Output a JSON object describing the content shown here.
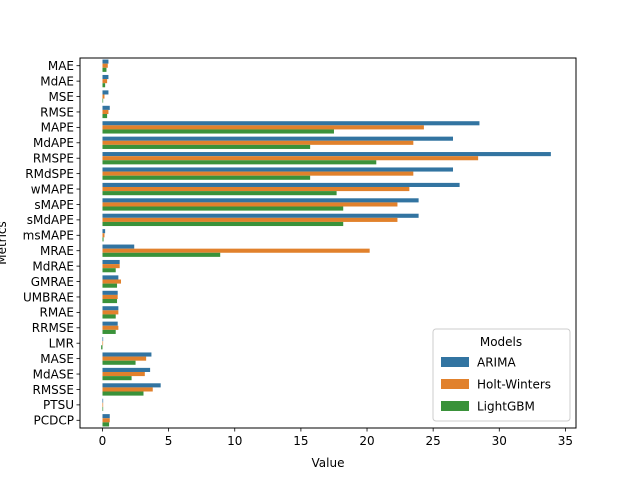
{
  "chart_data": {
    "type": "bar",
    "orientation": "horizontal",
    "title": "",
    "xlabel": "Value",
    "ylabel": "Metrics",
    "xlim": [
      -1.7,
      35.8
    ],
    "xticks": [
      0,
      5,
      10,
      15,
      20,
      25,
      30,
      35
    ],
    "grid": false,
    "legend": {
      "title": "Models",
      "placement": "lower-right"
    },
    "categories": [
      "MAE",
      "MdAE",
      "MSE",
      "RMSE",
      "MAPE",
      "MdAPE",
      "RMSPE",
      "RMdSPE",
      "wMAPE",
      "sMAPE",
      "sMdAPE",
      "msMAPE",
      "MRAE",
      "MdRAE",
      "GMRAE",
      "UMBRAE",
      "RMAE",
      "RRMSE",
      "LMR",
      "MASE",
      "MdASE",
      "RMSSE",
      "PTSU",
      "PCDCP"
    ],
    "series": [
      {
        "name": "ARIMA",
        "color": "#3274a1",
        "values": [
          0.45,
          0.45,
          0.45,
          0.55,
          28.5,
          26.5,
          33.9,
          26.5,
          27.0,
          23.9,
          23.9,
          0.2,
          2.4,
          1.3,
          1.2,
          1.15,
          1.2,
          1.15,
          0.05,
          3.7,
          3.6,
          4.4,
          0.05,
          0.55
        ]
      },
      {
        "name": "Holt-Winters",
        "color": "#e1812c",
        "values": [
          0.4,
          0.35,
          0.15,
          0.45,
          24.3,
          23.5,
          28.4,
          23.5,
          23.2,
          22.3,
          22.3,
          0.15,
          20.2,
          1.3,
          1.4,
          1.15,
          1.2,
          1.2,
          0.02,
          3.3,
          3.2,
          3.8,
          0.05,
          0.55
        ]
      },
      {
        "name": "LightGBM",
        "color": "#3a923a",
        "values": [
          0.3,
          0.2,
          0.05,
          0.35,
          17.5,
          15.7,
          20.7,
          15.7,
          17.7,
          18.2,
          18.2,
          0.08,
          8.9,
          1.0,
          1.1,
          1.1,
          1.0,
          1.0,
          -0.1,
          2.5,
          2.2,
          3.1,
          0.05,
          0.5
        ]
      }
    ]
  }
}
